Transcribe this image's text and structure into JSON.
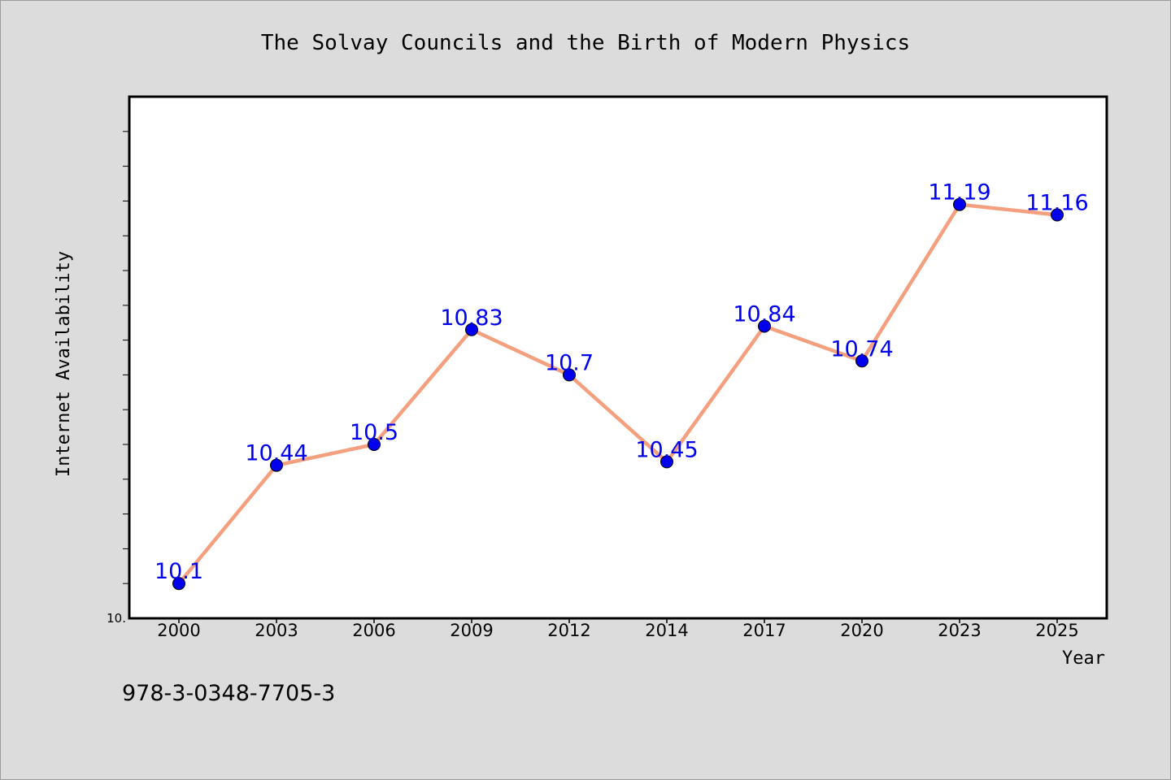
{
  "chart_data": {
    "type": "line",
    "title": "The Solvay Councils and the Birth of Modern Physics",
    "xlabel": "Year",
    "ylabel": "Internet Availability",
    "categories": [
      "2000",
      "2003",
      "2006",
      "2009",
      "2012",
      "2014",
      "2017",
      "2020",
      "2023",
      "2025"
    ],
    "series": [
      {
        "values": [
          10.1,
          10.44,
          10.5,
          10.83,
          10.7,
          10.45,
          10.84,
          10.74,
          11.19,
          11.16
        ]
      }
    ],
    "data_labels": [
      "10.1",
      "10.44",
      "10.5",
      "10.83",
      "10.7",
      "10.45",
      "10.84",
      "10.74",
      "11.19",
      "11.16"
    ],
    "ylim": [
      10.0,
      11.5
    ],
    "y_tick_label": "10.",
    "grid": false,
    "line_color": "#f4a07f",
    "marker_color": "#0000ee",
    "label_color": "#0000ee"
  },
  "footer": {
    "isbn": "978-3-0348-7705-3"
  }
}
